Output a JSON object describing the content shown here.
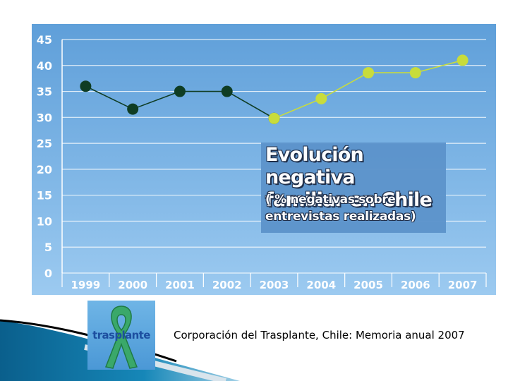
{
  "chart_data": {
    "type": "line",
    "title": "Evolución negativa\nfamiliar en Chile",
    "subtitle": "( % negativas sobre\nentrevistas realizadas)",
    "xlabel": "",
    "ylabel": "",
    "categories": [
      "1999",
      "2000",
      "2001",
      "2002",
      "2003",
      "2004",
      "2005",
      "2006",
      "2007"
    ],
    "ylim": [
      0,
      45
    ],
    "yticks": [
      0,
      5,
      10,
      15,
      20,
      25,
      30,
      35,
      40,
      45
    ],
    "grid": true,
    "series": [
      {
        "values": [
          36,
          31.6,
          35,
          35,
          29.8,
          null,
          null,
          null,
          null
        ],
        "color": "#0f3d24"
      },
      {
        "values": [
          null,
          null,
          null,
          null,
          29.8,
          33.6,
          38.6,
          38.6,
          41
        ],
        "color": "#c8dc3c"
      }
    ]
  },
  "logo": {
    "text": "trasplante"
  },
  "caption": "Corporación del Trasplante, Chile: Memoria anual 2007",
  "colors": {
    "panel": "#6fabe0",
    "title_box": "#5d94cc",
    "swoosh": "#0f6e99"
  }
}
